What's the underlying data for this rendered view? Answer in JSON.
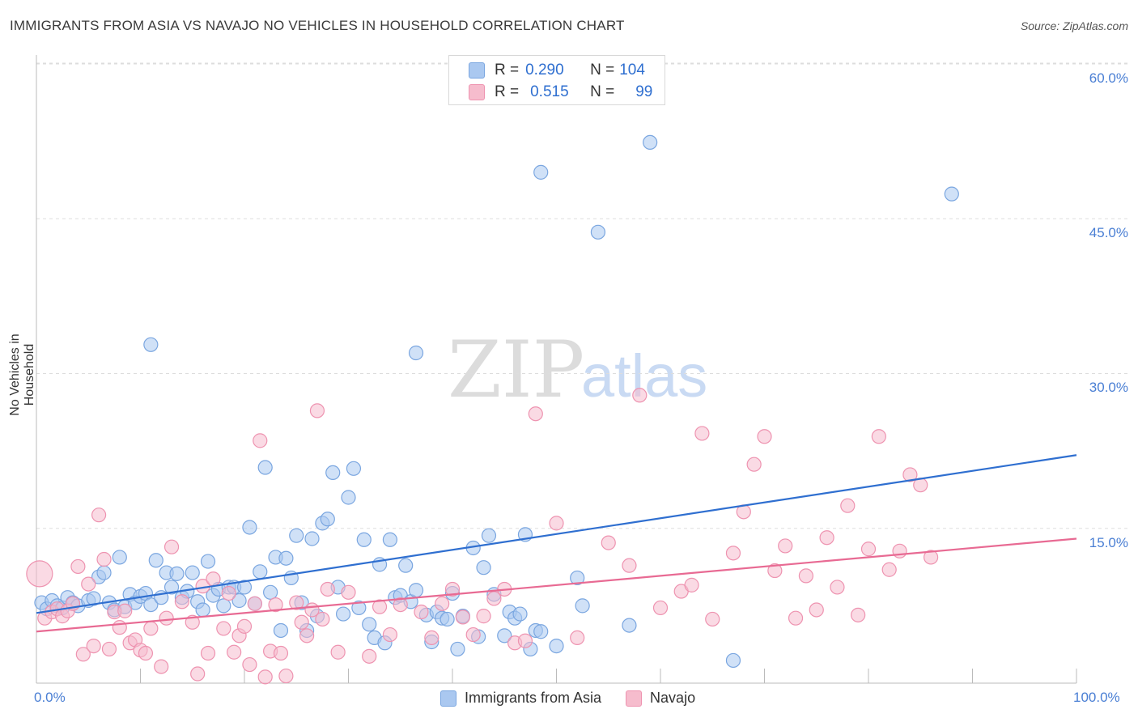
{
  "header": {
    "title": "IMMIGRANTS FROM ASIA VS NAVAJO NO VEHICLES IN HOUSEHOLD CORRELATION CHART",
    "source": "Source: ZipAtlas.com"
  },
  "watermark": {
    "zip": "ZIP",
    "atlas": "atlas"
  },
  "legend": {
    "r_label": "R =",
    "n_label": "N =",
    "series1": {
      "r": "0.290",
      "n": "104"
    },
    "series2": {
      "r": "0.515",
      "n": "99"
    }
  },
  "colors": {
    "series1_fill": "#aac8f0",
    "series1_stroke": "#7aa6e0",
    "series1_line": "#2f6fd0",
    "series2_fill": "#f6bccd",
    "series2_stroke": "#ee93b0",
    "series2_line": "#e86a93",
    "tick_label": "#4a7fd4",
    "grid": "#dddddd"
  },
  "chart_data": {
    "type": "scatter",
    "title": "IMMIGRANTS FROM ASIA VS NAVAJO NO VEHICLES IN HOUSEHOLD CORRELATION CHART",
    "xlabel": "",
    "ylabel": "No Vehicles in Household",
    "xlim": [
      0,
      100
    ],
    "ylim": [
      0,
      62
    ],
    "x_tick_labels": [
      "0.0%",
      "100.0%"
    ],
    "y_ticks": [
      15,
      30,
      45,
      60
    ],
    "y_tick_labels": [
      "15.0%",
      "30.0%",
      "45.0%",
      "60.0%"
    ],
    "grid": true,
    "legend_position": "top-center",
    "series": [
      {
        "name": "Immigrants from Asia",
        "trend": {
          "x": [
            0,
            100
          ],
          "y": [
            6.8,
            22.1
          ]
        },
        "points": [
          [
            0.5,
            7.8
          ],
          [
            1,
            7.2
          ],
          [
            1.5,
            8
          ],
          [
            2,
            7.5
          ],
          [
            2.5,
            7.3
          ],
          [
            3,
            8.3
          ],
          [
            3.5,
            7.8
          ],
          [
            4,
            7.5
          ],
          [
            5,
            8
          ],
          [
            5.5,
            8.2
          ],
          [
            6,
            10.3
          ],
          [
            6.5,
            10.7
          ],
          [
            7,
            7.8
          ],
          [
            7.5,
            7.1
          ],
          [
            8,
            12.2
          ],
          [
            8.5,
            7.4
          ],
          [
            9,
            8.6
          ],
          [
            9.5,
            7.8
          ],
          [
            10,
            8.4
          ],
          [
            10.5,
            8.7
          ],
          [
            11,
            7.6
          ],
          [
            11,
            32.8
          ],
          [
            11.5,
            11.9
          ],
          [
            12,
            8.3
          ],
          [
            12.5,
            10.7
          ],
          [
            13,
            9.3
          ],
          [
            13.5,
            10.6
          ],
          [
            14,
            8.3
          ],
          [
            14.5,
            8.9
          ],
          [
            15,
            10.7
          ],
          [
            15.5,
            7.9
          ],
          [
            16,
            7.1
          ],
          [
            16.5,
            11.8
          ],
          [
            17,
            8.5
          ],
          [
            17.5,
            9.1
          ],
          [
            18,
            7.5
          ],
          [
            18.5,
            9.3
          ],
          [
            19,
            9.3
          ],
          [
            19.5,
            8
          ],
          [
            20,
            9.3
          ],
          [
            20.5,
            15.1
          ],
          [
            21,
            7.7
          ],
          [
            21.5,
            10.8
          ],
          [
            22,
            20.9
          ],
          [
            22.5,
            8.8
          ],
          [
            23,
            12.2
          ],
          [
            23.5,
            5.1
          ],
          [
            24,
            12.1
          ],
          [
            24.5,
            10.2
          ],
          [
            25,
            14.3
          ],
          [
            25.5,
            7.8
          ],
          [
            26,
            5.1
          ],
          [
            26.5,
            14
          ],
          [
            27,
            6.5
          ],
          [
            27.5,
            15.5
          ],
          [
            28,
            15.9
          ],
          [
            28.5,
            20.4
          ],
          [
            29,
            9.3
          ],
          [
            29.5,
            6.7
          ],
          [
            30,
            18
          ],
          [
            30.5,
            20.8
          ],
          [
            31,
            7.3
          ],
          [
            31.5,
            13.9
          ],
          [
            32,
            5.7
          ],
          [
            32.5,
            4.4
          ],
          [
            33,
            11.5
          ],
          [
            33.5,
            3.9
          ],
          [
            34,
            13.9
          ],
          [
            34.5,
            8.3
          ],
          [
            35,
            8.5
          ],
          [
            35.5,
            11.4
          ],
          [
            36,
            7.9
          ],
          [
            36.5,
            9
          ],
          [
            36.5,
            32
          ],
          [
            37.5,
            6.6
          ],
          [
            38,
            4
          ],
          [
            38.5,
            6.9
          ],
          [
            39,
            6.3
          ],
          [
            39.5,
            6.2
          ],
          [
            40,
            8.7
          ],
          [
            40.5,
            3.3
          ],
          [
            41,
            6.5
          ],
          [
            42,
            13.1
          ],
          [
            42.5,
            4.5
          ],
          [
            43,
            11.2
          ],
          [
            43.5,
            14.3
          ],
          [
            44,
            8.6
          ],
          [
            45,
            4.6
          ],
          [
            45.5,
            6.9
          ],
          [
            46,
            6.3
          ],
          [
            46.5,
            6.7
          ],
          [
            47,
            14.4
          ],
          [
            47.5,
            3.3
          ],
          [
            48,
            5.1
          ],
          [
            48.5,
            5
          ],
          [
            48.5,
            49.5
          ],
          [
            50,
            3.6
          ],
          [
            52,
            10.2
          ],
          [
            52.5,
            7.5
          ],
          [
            54,
            43.7
          ],
          [
            57,
            5.6
          ],
          [
            59,
            52.4
          ],
          [
            67,
            2.2
          ],
          [
            88,
            47.4
          ]
        ]
      },
      {
        "name": "Navajo",
        "trend": {
          "x": [
            0,
            100
          ],
          "y": [
            5.0,
            14.0
          ]
        },
        "points": [
          [
            0.3,
            10.6
          ],
          [
            0.8,
            6.3
          ],
          [
            1.5,
            6.9
          ],
          [
            2,
            7.2
          ],
          [
            2.5,
            6.5
          ],
          [
            3,
            7
          ],
          [
            3.5,
            7.7
          ],
          [
            4,
            11.3
          ],
          [
            4.5,
            2.8
          ],
          [
            5,
            9.6
          ],
          [
            5.5,
            3.6
          ],
          [
            6,
            16.3
          ],
          [
            6.5,
            12
          ],
          [
            7,
            3.3
          ],
          [
            7.5,
            6.9
          ],
          [
            8,
            5.4
          ],
          [
            8.5,
            7
          ],
          [
            9,
            3.9
          ],
          [
            9.5,
            4.2
          ],
          [
            10,
            3.2
          ],
          [
            10.5,
            2.9
          ],
          [
            11,
            5.3
          ],
          [
            12,
            1.6
          ],
          [
            12.5,
            6.3
          ],
          [
            13,
            13.2
          ],
          [
            14,
            7.9
          ],
          [
            15,
            5.9
          ],
          [
            15.5,
            0.9
          ],
          [
            16,
            9.4
          ],
          [
            16.5,
            2.9
          ],
          [
            17,
            10.1
          ],
          [
            18,
            5.3
          ],
          [
            18.5,
            8.7
          ],
          [
            19,
            3
          ],
          [
            19.5,
            4.6
          ],
          [
            20,
            5.5
          ],
          [
            20.5,
            1.8
          ],
          [
            21,
            7.7
          ],
          [
            21.5,
            23.5
          ],
          [
            22,
            0.6
          ],
          [
            22.5,
            3.1
          ],
          [
            23,
            7.6
          ],
          [
            23.5,
            2.9
          ],
          [
            24,
            0.7
          ],
          [
            25,
            7.8
          ],
          [
            25.5,
            5.9
          ],
          [
            26,
            4.6
          ],
          [
            26.5,
            7.1
          ],
          [
            27,
            26.4
          ],
          [
            27.5,
            6.2
          ],
          [
            28,
            9.1
          ],
          [
            29,
            3
          ],
          [
            30,
            8.8
          ],
          [
            32,
            2.6
          ],
          [
            33,
            7.4
          ],
          [
            34,
            4.7
          ],
          [
            35,
            7.6
          ],
          [
            37,
            6.9
          ],
          [
            38,
            4.4
          ],
          [
            39,
            7.7
          ],
          [
            40,
            9.1
          ],
          [
            41,
            6.4
          ],
          [
            42,
            4.7
          ],
          [
            43,
            6.5
          ],
          [
            44,
            8.2
          ],
          [
            45,
            9.1
          ],
          [
            46,
            3.9
          ],
          [
            47,
            4.1
          ],
          [
            48,
            26.1
          ],
          [
            50,
            15.5
          ],
          [
            52,
            4.4
          ],
          [
            55,
            13.6
          ],
          [
            57,
            11.4
          ],
          [
            58,
            27.9
          ],
          [
            60,
            7.3
          ],
          [
            62,
            8.9
          ],
          [
            63,
            9.5
          ],
          [
            64,
            24.2
          ],
          [
            65,
            6.2
          ],
          [
            67,
            12.6
          ],
          [
            68,
            16.6
          ],
          [
            69,
            21.2
          ],
          [
            70,
            23.9
          ],
          [
            71,
            10.9
          ],
          [
            72,
            13.3
          ],
          [
            73,
            6.3
          ],
          [
            74,
            10.4
          ],
          [
            75,
            7.1
          ],
          [
            76,
            14.1
          ],
          [
            77,
            9.3
          ],
          [
            78,
            17.2
          ],
          [
            79,
            6.6
          ],
          [
            80,
            13
          ],
          [
            81,
            23.9
          ],
          [
            82,
            11
          ],
          [
            83,
            12.8
          ],
          [
            84,
            20.2
          ],
          [
            85,
            19.2
          ],
          [
            86,
            12.2
          ]
        ]
      }
    ],
    "bottom_legend": [
      "Immigrants from Asia",
      "Navajo"
    ]
  }
}
